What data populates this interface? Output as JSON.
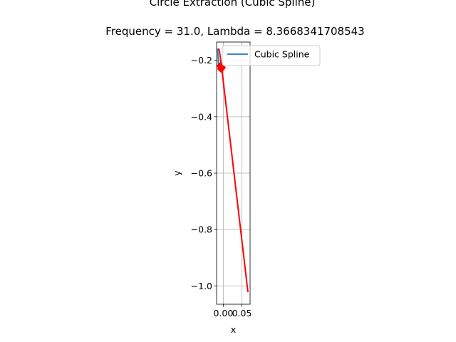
{
  "figure": {
    "title": "Circle Extraction (Cubic Spline)",
    "subtitle": "Frequency = 31.0, Lambda = 8.3668341708543"
  },
  "chart_data": {
    "type": "line",
    "title": "Circle Extraction (Cubic Spline)",
    "subtitle": "Frequency = 31.0, Lambda = 8.3668341708543",
    "xlabel": "x",
    "ylabel": "y",
    "xlim": [
      -0.018,
      0.072
    ],
    "ylim": [
      -1.065,
      -0.135
    ],
    "x_ticks": [
      0.0,
      0.05
    ],
    "x_tick_labels": [
      "0.00",
      "0.05"
    ],
    "y_ticks": [
      -0.2,
      -0.4,
      -0.6,
      -0.8,
      -1.0
    ],
    "y_tick_labels": [
      "−0.2",
      "−0.4",
      "−0.6",
      "−0.8",
      "−1.0"
    ],
    "grid": true,
    "legend": {
      "placement": "upper-right-outside",
      "entries": [
        {
          "label": "Cubic Spline",
          "color": "#1f77b4"
        }
      ]
    },
    "series": [
      {
        "name": "Cubic Spline",
        "color": "#1f77b4",
        "x": [
          -0.015,
          -0.0145,
          -0.014,
          -0.0135,
          -0.013
        ],
        "y": [
          -0.16,
          -0.175,
          -0.19,
          -0.205,
          -0.22
        ]
      },
      {
        "color": "#ff0000",
        "x": [
          -0.012,
          -0.01,
          -0.008,
          -0.006,
          -0.004,
          0.066
        ],
        "y": [
          -0.16,
          -0.17,
          -0.19,
          -0.21,
          -0.23,
          -1.02
        ]
      },
      {
        "color": "#ff0000",
        "marker": "D",
        "x": [
          -0.008,
          -0.006,
          -0.004
        ],
        "y": [
          -0.22,
          -0.23,
          -0.225
        ]
      }
    ]
  }
}
